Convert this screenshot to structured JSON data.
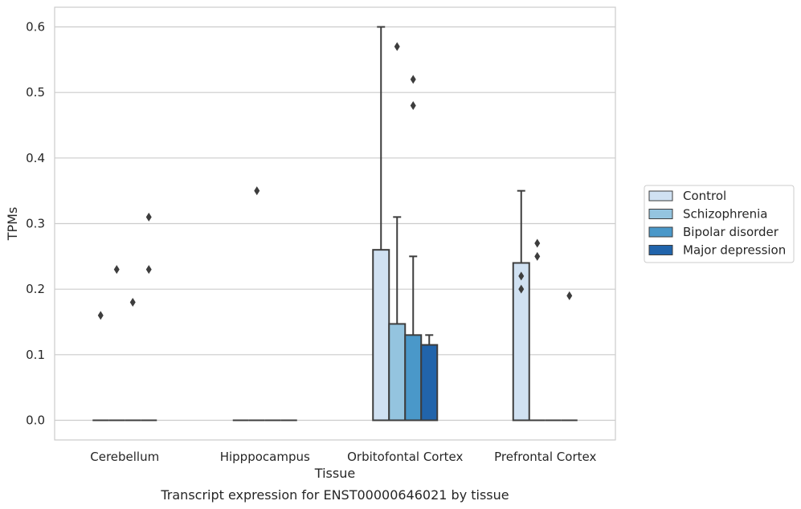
{
  "chart_data": {
    "type": "bar",
    "title": "",
    "caption": "Transcript expression for ENST00000646021 by tissue",
    "xlabel": "Tissue",
    "ylabel": "TPMs",
    "ylim": [
      -0.03,
      0.63
    ],
    "yticks": [
      0.0,
      0.1,
      0.2,
      0.3,
      0.4,
      0.5,
      0.6
    ],
    "ytick_labels": [
      "0.0",
      "0.1",
      "0.2",
      "0.3",
      "0.4",
      "0.5",
      "0.6"
    ],
    "grid": "horizontal",
    "legend_position": "right",
    "categories": [
      "Cerebellum",
      "Hipppocampus",
      "Orbitofontal Cortex",
      "Prefrontal Cortex"
    ],
    "series": [
      {
        "name": "Control",
        "color": "#d0e1f2",
        "values": [
          0.0,
          0.0,
          0.26,
          0.24
        ],
        "whisker_high": [
          0.0,
          0.0,
          0.6,
          0.35
        ],
        "outliers": [
          [
            0.16
          ],
          [],
          [],
          [
            0.22,
            0.2
          ]
        ]
      },
      {
        "name": "Schizophrenia",
        "color": "#94c4df",
        "values": [
          0.0,
          0.0,
          0.147,
          0.0
        ],
        "whisker_high": [
          0.0,
          0.0,
          0.31,
          0.0
        ],
        "outliers": [
          [
            0.23
          ],
          [
            0.35
          ],
          [
            0.57
          ],
          [
            0.27,
            0.25
          ]
        ]
      },
      {
        "name": "Bipolar disorder",
        "color": "#4a98c9",
        "values": [
          0.0,
          0.0,
          0.13,
          0.0
        ],
        "whisker_high": [
          0.0,
          0.0,
          0.25,
          0.0
        ],
        "outliers": [
          [
            0.18
          ],
          [],
          [
            0.52,
            0.48
          ],
          []
        ]
      },
      {
        "name": "Major depression",
        "color": "#2164ab",
        "values": [
          0.0,
          0.0,
          0.115,
          0.0
        ],
        "whisker_high": [
          0.0,
          0.0,
          0.13,
          0.0
        ],
        "outliers": [
          [
            0.31,
            0.23
          ],
          [],
          [],
          [
            0.19
          ]
        ]
      }
    ]
  }
}
